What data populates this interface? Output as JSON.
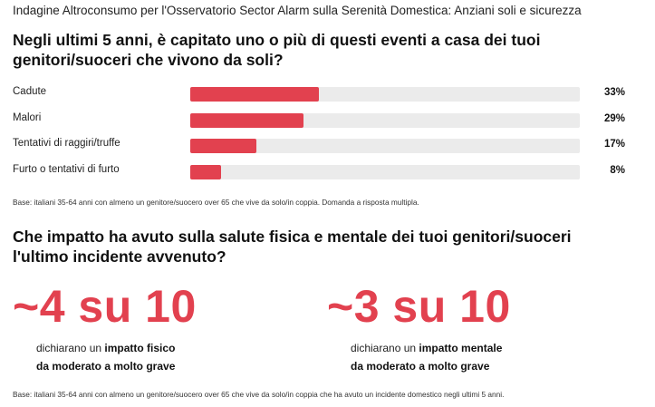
{
  "header": {
    "title": "Indagine Altroconsumo per l'Osservatorio Sector Alarm sulla Serenità Domestica: Anziani soli e sicurezza"
  },
  "question1": {
    "line1": "Negli ultimi 5 anni, è capitato uno o più di questi eventi a casa dei tuoi",
    "line2": "genitori/suoceri che vivono da soli?"
  },
  "chart_data": {
    "type": "bar",
    "orientation": "horizontal",
    "categories": [
      "Cadute",
      "Malori",
      "Tentativi di raggiri/truffe",
      "Furto o tentativi di furto"
    ],
    "values": [
      33,
      29,
      17,
      8
    ],
    "value_labels": [
      "33%",
      "29%",
      "17%",
      "8%"
    ],
    "unit": "%",
    "xlim": [
      0,
      100
    ],
    "bar_color": "#e2414f",
    "track_color": "#ebebeb"
  },
  "note1": "Base: italiani 35-64 anni con almeno un genitore/suocero over 65 che vive da solo/in coppia. Domanda a risposta multipla.",
  "question2": {
    "line1": "Che impatto ha avuto sulla salute fisica e mentale dei tuoi genitori/suoceri",
    "line2": "l'ultimo incidente avvenuto?"
  },
  "stats": [
    {
      "big": "~4 su 10",
      "pre": "dichiarano un ",
      "bold1": "impatto fisico",
      "bold2": "da moderato a molto grave"
    },
    {
      "big": "~3 su 10",
      "pre": "dichiarano un ",
      "bold1": "impatto mentale",
      "bold2": "da moderato a molto grave"
    }
  ],
  "accent_color": "#e2414f",
  "note2": "Base: italiani 35-64 anni con almeno un genitore/suocero over 65 che vive da solo/in coppia che ha avuto un incidente domestico negli ultimi 5 anni."
}
